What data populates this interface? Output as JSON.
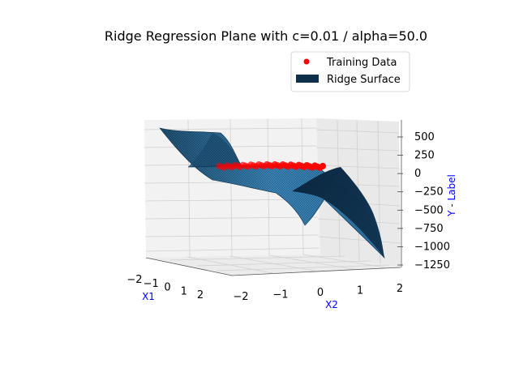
{
  "chart_data": {
    "type": "surface3d",
    "title": "Ridge Regression Plane with c=0.01 / alpha=50.0",
    "axes": {
      "x": {
        "label": "X1",
        "label_color": "#0000ff",
        "ticks": [
          "−2",
          "−1",
          "0",
          "1",
          "2"
        ]
      },
      "y": {
        "label": "X2",
        "label_color": "#0000ff",
        "ticks": [
          "−2",
          "−1",
          "0",
          "1",
          "2"
        ]
      },
      "z": {
        "label": "Y - Label",
        "label_color": "#0000ff",
        "ticks": [
          "−1250",
          "−1000",
          "−750",
          "−500",
          "−250",
          "0",
          "250",
          "500"
        ]
      }
    },
    "legend": {
      "placement": "upper-right",
      "entries": [
        {
          "label": "Training Data",
          "kind": "marker",
          "color": "#ff0000"
        },
        {
          "label": "Ridge Surface",
          "kind": "patch",
          "color": "#0d2f4a"
        }
      ]
    },
    "series": [
      {
        "name": "Training Data",
        "kind": "scatter",
        "color": "#ff0000"
      },
      {
        "name": "Ridge Surface",
        "kind": "surface",
        "color": "#2a7ab8"
      }
    ],
    "grid": true
  }
}
